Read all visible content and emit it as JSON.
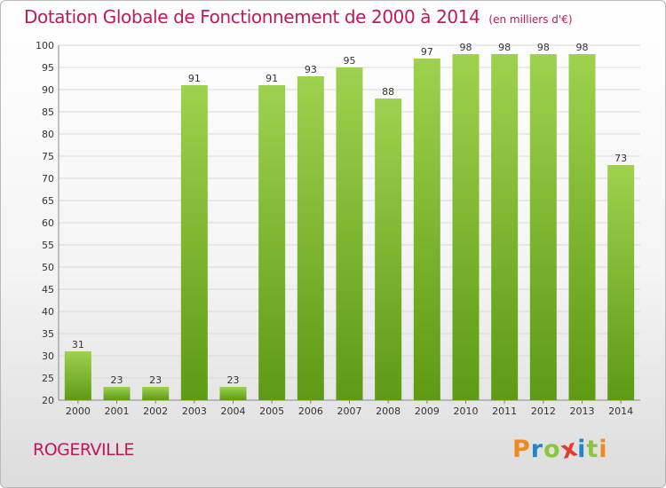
{
  "header": {
    "title": "Dotation Globale de Fonctionnement de 2000 à 2014",
    "unit": "(en milliers d'€)"
  },
  "footer": {
    "town": "ROGERVILLE",
    "logo_letters": [
      "P",
      "r",
      "o",
      "x",
      "i",
      "t",
      "i"
    ]
  },
  "colors": {
    "title": "#c2185b",
    "bar_light": "#9ed24e",
    "bar_dark": "#5e9a14",
    "grid": "#d9d9d9",
    "logo": [
      "#f08a1c",
      "#1e88c8",
      "#8cc63f",
      "#e53935",
      "#1e88c8",
      "#8cc63f",
      "#f08a1c"
    ]
  },
  "chart_data": {
    "type": "bar",
    "title": "Dotation Globale de Fonctionnement de 2000 à 2014",
    "subtitle": "(en milliers d'€)",
    "categories": [
      "2000",
      "2001",
      "2002",
      "2003",
      "2004",
      "2005",
      "2006",
      "2007",
      "2008",
      "2009",
      "2010",
      "2011",
      "2012",
      "2013",
      "2014"
    ],
    "values": [
      31,
      23,
      23,
      91,
      23,
      91,
      93,
      95,
      88,
      97,
      98,
      98,
      98,
      98,
      73
    ],
    "ylim": [
      20,
      100
    ],
    "yticks": [
      20,
      25,
      30,
      35,
      40,
      45,
      50,
      55,
      60,
      65,
      70,
      75,
      80,
      85,
      90,
      95,
      100
    ],
    "grid": true,
    "data_labels": true
  }
}
